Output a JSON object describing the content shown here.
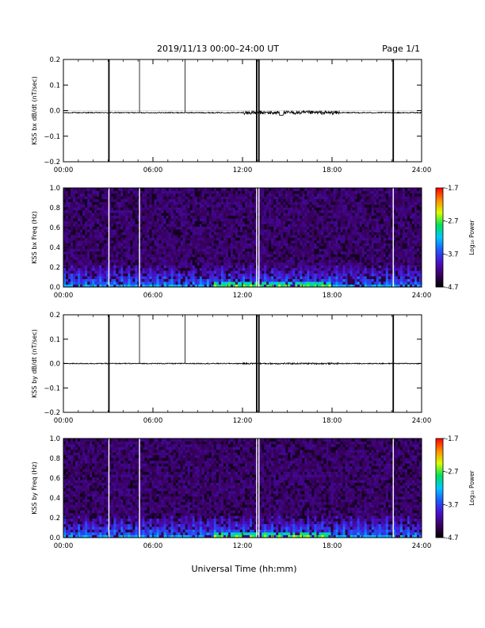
{
  "header": {
    "title": "2019/11/13  00:00–24:00 UT",
    "page": "Page 1/1"
  },
  "footer": {
    "xlabel": "Universal Time (hh:mm)"
  },
  "colorbar": {
    "label": "Log₁₀ Power",
    "ticks": [
      "-1.7",
      "-2.7",
      "-3.7",
      "-4.7"
    ],
    "range": [
      -4.7,
      -1.7
    ],
    "colors": [
      "#000000",
      "#3a0060",
      "#4a10c8",
      "#1e5aff",
      "#00c8ff",
      "#00e05a",
      "#d8ff00",
      "#ff8c00",
      "#ff0000"
    ]
  },
  "chart_data": [
    {
      "type": "line",
      "ylabel": "KSS bx dB/dt (nT/sec)",
      "xlim": [
        0,
        24
      ],
      "ylim": [
        -0.2,
        0.2
      ],
      "x_tick_labels": [
        "00:00",
        "06:00",
        "12:00",
        "18:00",
        "24:00"
      ],
      "y_tick_labels": [
        "0.2",
        "0.1",
        "0.0",
        "−0.1",
        "−0.2"
      ],
      "baseline": -0.008,
      "noise_amplitude": {
        "quiet": 0.002,
        "active_12_to_18": 0.007
      },
      "gap_markers_hours": [
        3.05,
        5.1,
        8.15,
        12.95,
        13.1,
        22.1
      ],
      "full_height_markers_hours": [
        3.05,
        12.95,
        13.1,
        22.1
      ]
    },
    {
      "type": "heatmap",
      "ylabel": "KSS bx Freq (Hz)",
      "xlim": [
        0,
        24
      ],
      "ylim": [
        0.0,
        1.0
      ],
      "x_tick_labels": [
        "00:00",
        "06:00",
        "12:00",
        "18:00",
        "24:00"
      ],
      "y_tick_labels": [
        "1.0",
        "0.8",
        "0.6",
        "0.4",
        "0.2",
        "0.0"
      ],
      "value_range": [
        -4.7,
        -1.7
      ],
      "gap_hours": [
        3.05,
        5.1,
        12.95,
        13.1,
        22.1
      ],
      "low_freq_enhancement_hours": [
        10,
        18
      ]
    },
    {
      "type": "line",
      "ylabel": "KSS by dB/dt (nT/sec)",
      "xlim": [
        0,
        24
      ],
      "ylim": [
        -0.2,
        0.2
      ],
      "x_tick_labels": [
        "00:00",
        "06:00",
        "12:00",
        "18:00",
        "24:00"
      ],
      "y_tick_labels": [
        "0.2",
        "0.1",
        "0.0",
        "−0.1",
        "−0.2"
      ],
      "baseline": 0.0,
      "noise_amplitude": {
        "quiet": 0.002,
        "active_12_to_18": 0.003
      },
      "gap_markers_hours": [
        3.05,
        5.1,
        8.15,
        12.95,
        13.1,
        22.1
      ],
      "full_height_markers_hours": [
        3.05,
        12.95,
        13.1,
        22.1
      ]
    },
    {
      "type": "heatmap",
      "ylabel": "KSS by Freq (Hz)",
      "xlim": [
        0,
        24
      ],
      "ylim": [
        0.0,
        1.0
      ],
      "x_tick_labels": [
        "00:00",
        "06:00",
        "12:00",
        "18:00",
        "24:00"
      ],
      "y_tick_labels": [
        "1.0",
        "0.8",
        "0.6",
        "0.4",
        "0.2",
        "0.0"
      ],
      "value_range": [
        -4.7,
        -1.7
      ],
      "gap_hours": [
        3.05,
        5.1,
        12.95,
        13.1,
        22.1
      ],
      "low_freq_enhancement_hours": [
        10,
        18
      ]
    }
  ]
}
